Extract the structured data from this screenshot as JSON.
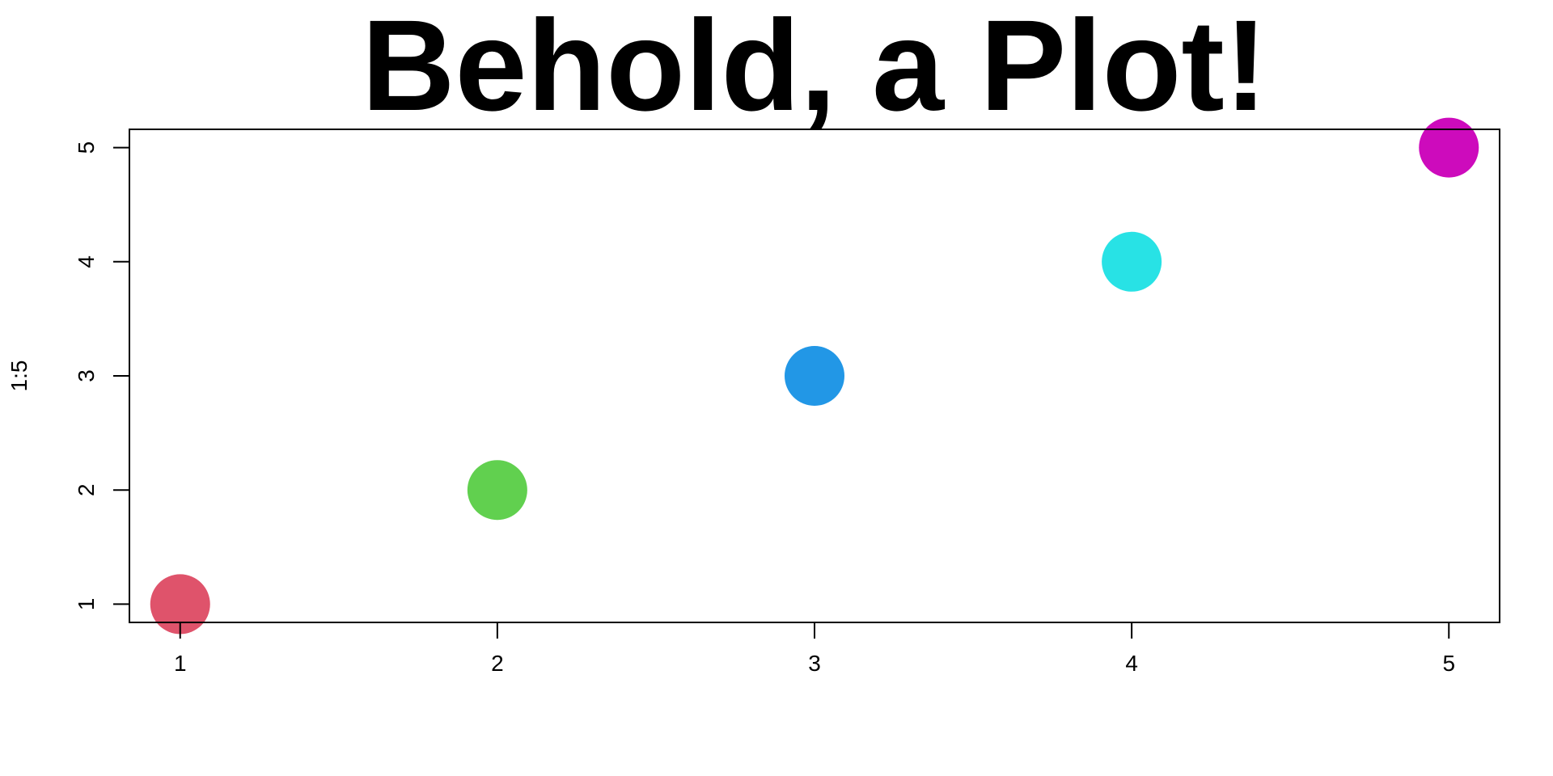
{
  "chart_data": {
    "type": "scatter",
    "title": "Behold, a Plot!",
    "xlabel": "",
    "ylabel": "1:5",
    "x": [
      1,
      2,
      3,
      4,
      5
    ],
    "y": [
      1,
      2,
      3,
      4,
      5
    ],
    "point_colors": [
      "#DF536B",
      "#61D04F",
      "#2297E6",
      "#28E2E5",
      "#CD0BBC"
    ],
    "x_ticks": [
      1,
      2,
      3,
      4,
      5
    ],
    "y_ticks": [
      1,
      2,
      3,
      4,
      5
    ],
    "xlim": [
      0.84,
      5.16
    ],
    "ylim": [
      0.84,
      5.16
    ],
    "grid": false,
    "legend": "none"
  }
}
